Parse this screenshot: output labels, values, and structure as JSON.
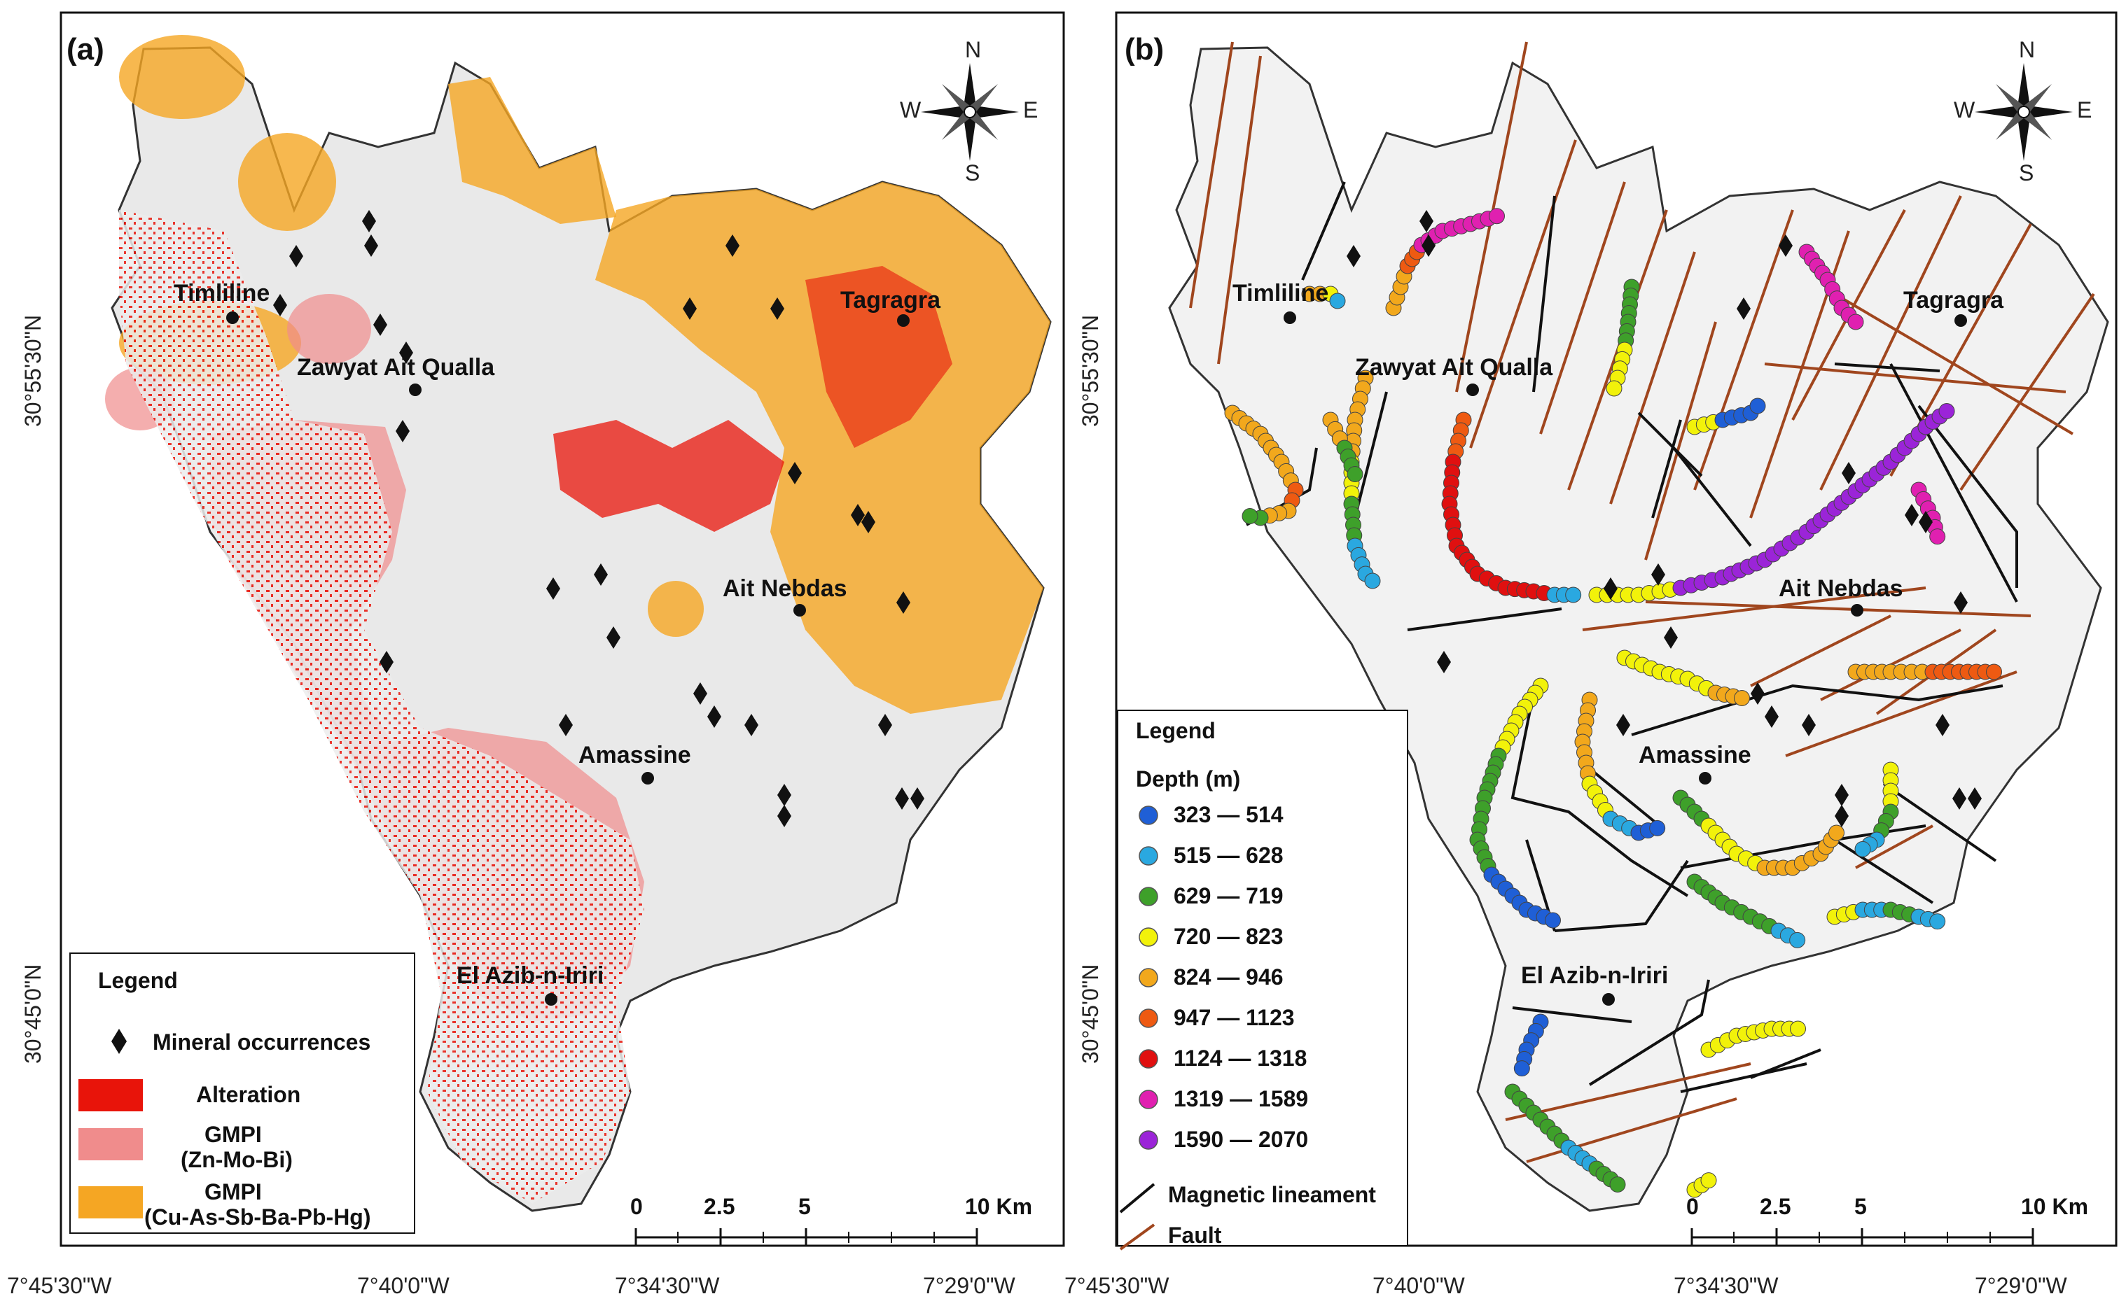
{
  "panel_a": {
    "label": "(a)",
    "places": [
      {
        "name": "Timliline"
      },
      {
        "name": "Zawyat Ait Qualla"
      },
      {
        "name": "Tagragra"
      },
      {
        "name": "Ait Nebdas"
      },
      {
        "name": "Amassine"
      },
      {
        "name": "El Azib-n-Iriri"
      }
    ],
    "legend": {
      "title": "Legend",
      "items": [
        {
          "label": "Mineral occurrences",
          "color": "#111111"
        },
        {
          "label": "Alteration",
          "color": "#e8140a"
        },
        {
          "label_line1": "GMPI",
          "label_line2": "(Zn-Mo-Bi)",
          "color": "#f08c8c"
        },
        {
          "label_line1": "GMPI",
          "label_line2": "(Cu-As-Sb-Ba-Pb-Hg)",
          "color": "#f5a623"
        }
      ]
    },
    "scale": {
      "ticks": [
        "0",
        "2.5",
        "5",
        "10 Km"
      ]
    },
    "x_ticks": [
      "7°45'30\"W",
      "7°40'0\"W",
      "7°34'30\"W",
      "7°29'0\"W"
    ],
    "y_ticks": [
      "30°55'30\"N",
      "30°45'0\"N"
    ]
  },
  "panel_b": {
    "label": "(b)",
    "places": [
      {
        "name": "Timliline"
      },
      {
        "name": "Zawyat Ait Qualla"
      },
      {
        "name": "Tagragra"
      },
      {
        "name": "Ait Nebdas"
      },
      {
        "name": "Amassine"
      },
      {
        "name": "El Azib-n-Iriri"
      }
    ],
    "legend": {
      "title": "Legend",
      "subtitle": "Depth (m)",
      "depth_classes": [
        {
          "label": "323 — 514",
          "color": "#1f5fd6"
        },
        {
          "label": "515 — 628",
          "color": "#2aa8e0"
        },
        {
          "label": "629 — 719",
          "color": "#3ea02a"
        },
        {
          "label": "720 — 823",
          "color": "#f2f20a"
        },
        {
          "label": "824 — 946",
          "color": "#f2a81c"
        },
        {
          "label": "947 — 1123",
          "color": "#ee5a12"
        },
        {
          "label": "1124 — 1318",
          "color": "#e01010"
        },
        {
          "label": "1319 — 1589",
          "color": "#e020b0"
        },
        {
          "label": "1590 — 2070",
          "color": "#9b24d8"
        }
      ],
      "lines": [
        {
          "label": "Magnetic lineament",
          "color": "#111111"
        },
        {
          "label": "Fault",
          "color": "#a0461e"
        }
      ]
    },
    "scale": {
      "ticks": [
        "0",
        "2.5",
        "5",
        "10 Km"
      ]
    },
    "x_ticks": [
      "7°45'30\"W",
      "7°40'0\"W",
      "7°34'30\"W",
      "7°29'0\"W"
    ],
    "y_ticks": [
      "30°55'30\"N",
      "30°45'0\"N"
    ]
  },
  "compass": {
    "n": "N",
    "s": "S",
    "e": "E",
    "w": "W"
  }
}
